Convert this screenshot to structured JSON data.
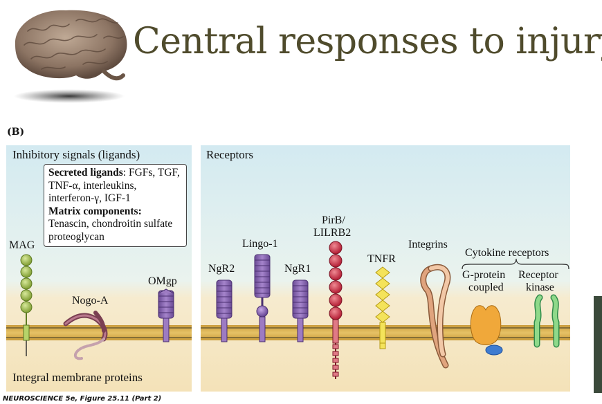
{
  "slide": {
    "title": "Central responses to injury",
    "figure_label": "(B)",
    "caption": "NEUROSCIENCE 5e, Figure 25.11 (Part 2)"
  },
  "left_panel": {
    "header": "Inhibitory signals (ligands)",
    "footer": "Integral membrane proteins",
    "box": {
      "secreted_heading": "Secreted ligands",
      "secreted_text": ": FGFs, TGF, TNF-α, interleukins, interferon-γ, IGF-1",
      "matrix_heading": "Matrix components:",
      "matrix_text": "Tenascin, chondroitin sulfate proteoglycan"
    },
    "labels": {
      "mag": "MAG",
      "nogo": "Nogo-A",
      "omgp": "OMgp"
    }
  },
  "right_panel": {
    "header": "Receptors",
    "labels": {
      "ngr2": "NgR2",
      "lingo": "Lingo-1",
      "ngr1": "NgR1",
      "pirb_1": "PirB/",
      "pirb_2": "LILRB2",
      "tnfr": "TNFR",
      "integrins": "Integrins",
      "cytokine": "Cytokine receptors",
      "gprotein_1": "G-protein",
      "gprotein_2": "coupled",
      "kinase_1": "Receptor",
      "kinase_2": "kinase"
    }
  },
  "colors": {
    "panel_top": "#cfe8ef",
    "panel_bottom": "#f7e7c4",
    "membrane": "#d9b24a",
    "membrane_line": "#6b5a2e",
    "mag_green": "#a6c24b",
    "purple": "#8b6bb0",
    "red": "#c9364a",
    "yellow": "#f2e04a",
    "orange": "#e9a93a",
    "blue": "#3f7bc7",
    "green_receptor": "#8fd27a",
    "title": "#4f4b2c"
  }
}
